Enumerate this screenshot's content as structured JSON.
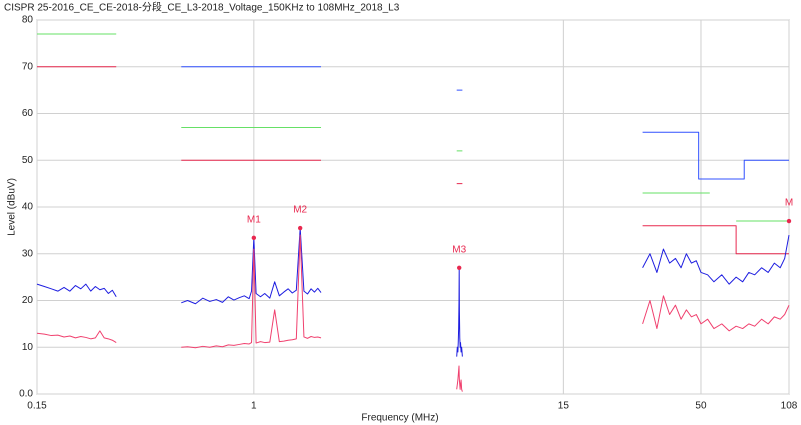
{
  "chart_data": {
    "type": "line",
    "title": "CISPR 25-2016_CE_CE-2018-分段_CE_L3-2018_Voltage_150KHz to 108MHz_2018_L3",
    "xlabel": "Frequency (MHz)",
    "ylabel": "Level (dBuV)",
    "xscale": "log",
    "grid": true,
    "xlim": [
      0.15,
      108
    ],
    "ylim": [
      0,
      80
    ],
    "xticks": [
      0.15,
      1,
      15,
      50,
      108
    ],
    "yticks": [
      {
        "value": 0,
        "label": "0.0"
      },
      10,
      20,
      30,
      40,
      50,
      60,
      70,
      80
    ],
    "series": [
      {
        "color": "#e8284f",
        "x": [
          0.15,
          0.3,
          0.4,
          0.53,
          1.8,
          3,
          5.9,
          6.2,
          20,
          30,
          68,
          68,
          108
        ],
        "values": [
          70,
          70,
          null,
          50,
          50,
          null,
          45,
          45,
          null,
          36,
          36,
          30,
          30
        ]
      },
      {
        "color": "#66e066",
        "x": [
          0.15,
          0.3,
          0.4,
          0.53,
          1.8,
          3,
          5.9,
          6.2,
          20,
          30,
          54,
          60,
          68,
          108
        ],
        "values": [
          77,
          77,
          null,
          57,
          57,
          null,
          52,
          52,
          null,
          43,
          43,
          null,
          37,
          37
        ]
      },
      {
        "color": "#3050ff",
        "x": [
          0.53,
          1.8,
          3,
          5.9,
          6.2,
          20,
          30,
          49,
          49,
          73,
          73,
          108
        ],
        "values": [
          70,
          70,
          null,
          65,
          65,
          null,
          56,
          56,
          46,
          46,
          50,
          50
        ]
      },
      {
        "color": "#1e1ee0",
        "x": [
          0.15,
          0.16,
          0.17,
          0.18,
          0.19,
          0.2,
          0.21,
          0.22,
          0.23,
          0.24,
          0.25,
          0.26,
          0.27,
          0.28,
          0.29,
          0.3,
          0.4,
          0.53,
          0.56,
          0.6,
          0.64,
          0.68,
          0.72,
          0.76,
          0.8,
          0.84,
          0.88,
          0.92,
          0.96,
          0.98,
          1.0,
          1.02,
          1.06,
          1.1,
          1.15,
          1.2,
          1.25,
          1.3,
          1.35,
          1.4,
          1.45,
          1.5,
          1.55,
          1.6,
          1.65,
          1.7,
          1.75,
          1.8,
          3,
          5.9,
          5.93,
          5.96,
          5.98,
          6.0,
          6.02,
          6.03,
          6.04,
          6.06,
          6.08,
          6.1,
          6.13,
          6.16,
          6.2,
          20,
          30,
          32,
          34,
          36,
          38,
          40,
          42,
          44,
          46,
          48,
          50,
          53,
          56,
          60,
          64,
          68,
          72,
          76,
          80,
          85,
          90,
          95,
          100,
          104,
          108
        ],
        "values": [
          23.5,
          23,
          22.5,
          22,
          22.8,
          22,
          23.2,
          22.5,
          23.5,
          22,
          23,
          22.3,
          22.6,
          21.5,
          22.2,
          20.8,
          null,
          19.5,
          20,
          19.3,
          20.5,
          19.8,
          20.2,
          19.6,
          20.8,
          20.1,
          20.6,
          21,
          20.4,
          22,
          33.4,
          21.5,
          20.8,
          21.5,
          20.5,
          24,
          21,
          21.8,
          22.5,
          21.6,
          22.2,
          35.5,
          22,
          21.4,
          22.5,
          21.8,
          22.6,
          21.7,
          null,
          8,
          10,
          9,
          11,
          14,
          20,
          27,
          18,
          12,
          10,
          11,
          9,
          10,
          8,
          null,
          27,
          30,
          26,
          31,
          28,
          29,
          27,
          30,
          28,
          28.5,
          26,
          25.5,
          24,
          25.5,
          23.5,
          25,
          24,
          26,
          25.5,
          27,
          26,
          28,
          27,
          29,
          34
        ]
      },
      {
        "color": "#f0406e",
        "x": [
          0.15,
          0.16,
          0.17,
          0.18,
          0.19,
          0.2,
          0.21,
          0.22,
          0.23,
          0.24,
          0.25,
          0.26,
          0.27,
          0.28,
          0.29,
          0.3,
          0.4,
          0.53,
          0.56,
          0.6,
          0.64,
          0.68,
          0.72,
          0.76,
          0.8,
          0.84,
          0.88,
          0.92,
          0.96,
          0.98,
          1.0,
          1.02,
          1.06,
          1.1,
          1.15,
          1.2,
          1.25,
          1.3,
          1.35,
          1.4,
          1.45,
          1.5,
          1.55,
          1.6,
          1.65,
          1.7,
          1.75,
          1.8,
          3,
          5.9,
          5.93,
          5.96,
          5.98,
          6.0,
          6.02,
          6.03,
          6.04,
          6.06,
          6.08,
          6.1,
          6.13,
          6.16,
          6.2,
          20,
          30,
          32,
          34,
          36,
          38,
          40,
          42,
          44,
          46,
          48,
          50,
          53,
          56,
          60,
          64,
          68,
          72,
          76,
          80,
          85,
          90,
          95,
          100,
          104,
          108
        ],
        "values": [
          13,
          12.8,
          12.5,
          12.6,
          12.2,
          12.4,
          12,
          12.3,
          12.1,
          11.8,
          12,
          13.5,
          12,
          11.8,
          11.5,
          11,
          null,
          10,
          10.1,
          9.9,
          10.2,
          10,
          10.3,
          10.1,
          10.5,
          10.4,
          10.6,
          10.8,
          10.7,
          11,
          31,
          10.9,
          11.2,
          11,
          11.1,
          18,
          11.2,
          11.3,
          11.5,
          11.6,
          11.8,
          34,
          12.2,
          11.9,
          12.3,
          12.1,
          12.2,
          12,
          null,
          1,
          2,
          3,
          4,
          5,
          6,
          4,
          3,
          2,
          1,
          2,
          3,
          1,
          0.5,
          null,
          15,
          20,
          14,
          21,
          17,
          19,
          16,
          18,
          16.5,
          17,
          15,
          16,
          14,
          15,
          13.5,
          14.5,
          14,
          15,
          14.5,
          16,
          15,
          16.5,
          16,
          17,
          19
        ]
      }
    ],
    "marker_color": "#e8284f",
    "markers": [
      {
        "label": "M1",
        "x": 1.0,
        "y": 33.4
      },
      {
        "label": "M2",
        "x": 1.5,
        "y": 35.5
      },
      {
        "label": "M3",
        "x": 6.03,
        "y": 27
      },
      {
        "label": "M",
        "x": 108,
        "y": 37
      }
    ]
  }
}
